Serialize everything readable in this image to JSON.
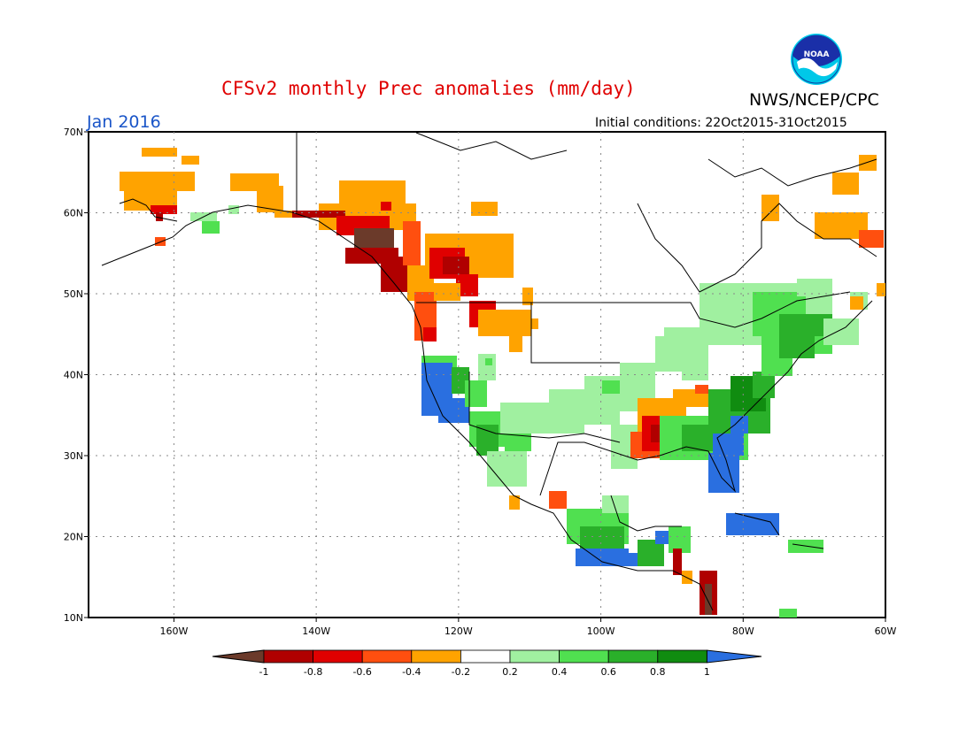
{
  "header": {
    "title": "CFSv2 monthly Prec anomalies (mm/day)",
    "org": "NWS/NCEP/CPC",
    "logo_text": "NOAA",
    "valid_month": "Jan 2016",
    "init_conditions": "Initial conditions: 22Oct2015-31Oct2015"
  },
  "map": {
    "lat_labels": [
      "70N",
      "60N",
      "50N",
      "40N",
      "30N",
      "20N",
      "10N"
    ],
    "lon_labels": [
      "160W",
      "140W",
      "120W",
      "100W",
      "80W",
      "60W"
    ],
    "lat_values": [
      70,
      60,
      50,
      40,
      30,
      20,
      10
    ],
    "lon_values": [
      -160,
      -140,
      -120,
      -100,
      -80,
      -60
    ],
    "extent": {
      "lon_min": -172,
      "lon_max": -60,
      "lat_min": 10,
      "lat_max": 70
    }
  },
  "legend": {
    "ticks": [
      "-1",
      "-0.8",
      "-0.6",
      "-0.4",
      "-0.2",
      "0.2",
      "0.4",
      "0.6",
      "0.8",
      "1"
    ],
    "colors": {
      "lt_m1": "#6b3a2a",
      "m1_m08": "#b00000",
      "m08_m06": "#e00000",
      "m06_m04": "#ff4f0f",
      "m04_m02": "#ffa300",
      "m02_02": "#ffffff",
      "p02_04": "#a0f0a0",
      "p04_06": "#50e050",
      "p06_08": "#2ab02a",
      "p08_1": "#108c10",
      "gt_1": "#2a6fe0"
    }
  }
}
